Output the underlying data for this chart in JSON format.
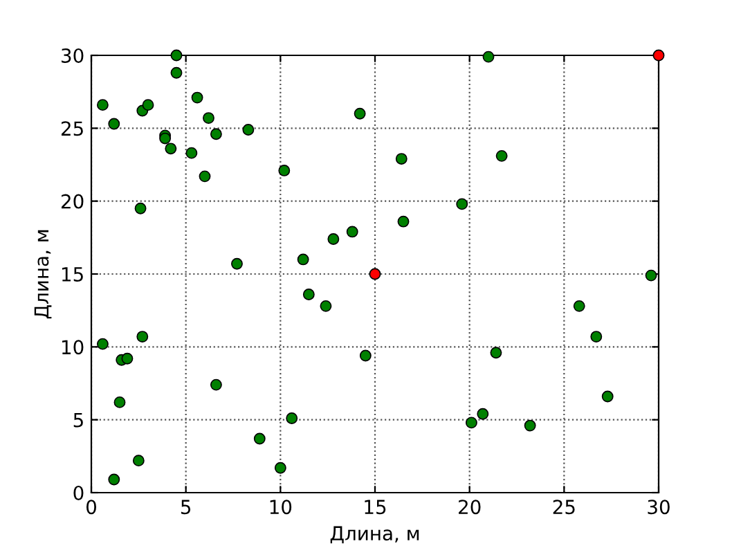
{
  "chart_data": {
    "type": "scatter",
    "xlabel": "Длина, м",
    "ylabel": "Длина, м",
    "xlim": [
      0,
      30
    ],
    "ylim": [
      0,
      30
    ],
    "xticks": [
      0,
      5,
      10,
      15,
      20,
      25,
      30
    ],
    "yticks": [
      0,
      5,
      10,
      15,
      20,
      25,
      30
    ],
    "grid": true,
    "marker": "circle",
    "line_style": "dotted",
    "series": [
      {
        "color": "#008000",
        "x": [
          0.6,
          1.2,
          2.7,
          3.0,
          3.9,
          3.9,
          4.2,
          4.5,
          4.5,
          5.3,
          5.6,
          6.2,
          6.6,
          6.0,
          8.3,
          10.2,
          14.2,
          16.4,
          21.0,
          21.7,
          19.6,
          16.5,
          2.6,
          7.7,
          11.2,
          12.8,
          13.8,
          11.5,
          12.4,
          29.6,
          25.8,
          26.7,
          21.4,
          14.5,
          0.6,
          2.7,
          1.6,
          1.9,
          1.5,
          6.6,
          27.3,
          20.7,
          20.1,
          23.2,
          10.6,
          8.9,
          10.0,
          2.5,
          1.2
        ],
        "values": [
          26.6,
          25.3,
          26.2,
          26.6,
          24.5,
          24.3,
          23.6,
          30.0,
          28.8,
          23.3,
          27.1,
          25.7,
          24.6,
          21.7,
          24.9,
          22.1,
          26.0,
          22.9,
          29.9,
          23.1,
          19.8,
          18.6,
          19.5,
          15.7,
          16.0,
          17.4,
          17.9,
          13.6,
          12.8,
          14.9,
          12.8,
          10.7,
          9.6,
          9.4,
          10.2,
          10.7,
          9.1,
          9.2,
          6.2,
          7.4,
          6.6,
          5.4,
          4.8,
          4.6,
          5.1,
          3.7,
          1.7,
          2.2,
          0.9
        ]
      },
      {
        "color": "#ff0000",
        "x": [
          15.0,
          30.0
        ],
        "values": [
          15.0,
          30.0
        ]
      }
    ]
  }
}
